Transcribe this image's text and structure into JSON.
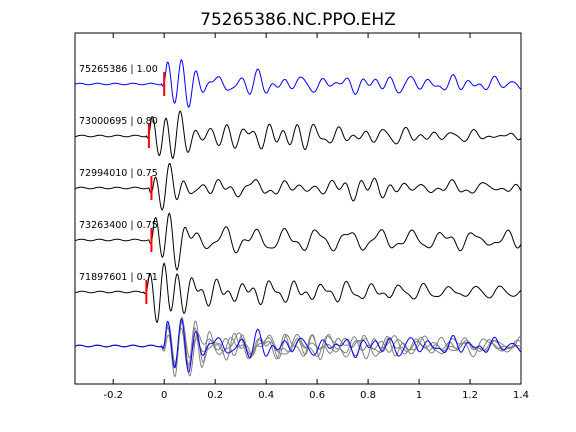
{
  "chart_data": {
    "type": "line",
    "title": "75265386.NC.PPO.EHZ",
    "xlabel": "",
    "ylabel": "",
    "xlim": [
      -0.35,
      1.4
    ],
    "xticks": [
      -0.2,
      0,
      0.2,
      0.4,
      0.6,
      0.8,
      1,
      1.2,
      1.4
    ],
    "xtick_labels": [
      "-0.2",
      "0",
      "0.2",
      "0.4",
      "0.6",
      "0.8",
      "1",
      "1.2",
      "1.4"
    ],
    "grid": false,
    "legend": "none",
    "traces": [
      {
        "label": "75265386 | 1.00",
        "event_id": "75265386",
        "correlation": 1.0,
        "pick_time": 0.0,
        "color": "#0000ff"
      },
      {
        "label": "73000695 | 0.80",
        "event_id": "73000695",
        "correlation": 0.8,
        "pick_time": -0.06,
        "color": "#000000"
      },
      {
        "label": "72994010 | 0.75",
        "event_id": "72994010",
        "correlation": 0.75,
        "pick_time": -0.05,
        "color": "#000000"
      },
      {
        "label": "73263400 | 0.75",
        "event_id": "73263400",
        "correlation": 0.75,
        "pick_time": -0.05,
        "color": "#000000"
      },
      {
        "label": "71897601 | 0.71",
        "event_id": "71897601",
        "correlation": 0.71,
        "pick_time": -0.07,
        "color": "#000000"
      }
    ],
    "stack": {
      "label": "",
      "overlay_color": "#808080",
      "reference_color": "#0000ff"
    },
    "colors": {
      "pick_marker": "#ff0000",
      "reference_trace": "#0000ff",
      "aligned_trace": "#000000",
      "overlay_trace": "#808080"
    }
  }
}
